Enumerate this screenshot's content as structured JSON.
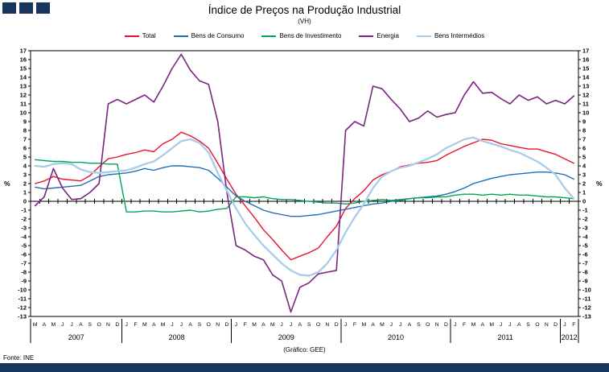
{
  "header": {
    "title": "Índice de Preços na Produção Industrial",
    "subtitle": "(VH)"
  },
  "footer": {
    "source": "Fonte: INE",
    "credit": "(Gráfico: GEE)"
  },
  "colors": {
    "brand_navy": "#17365D",
    "axis": "#000000"
  },
  "chart_data": {
    "type": "line",
    "title": "Índice de Preços na Produção Industrial",
    "subtitle": "(VH)",
    "ylabel": "%",
    "ylim": [
      -13,
      17
    ],
    "ytick_step": 1,
    "grid": false,
    "legend_position": "top",
    "x_months": [
      "M",
      "A",
      "M",
      "J",
      "J",
      "A",
      "S",
      "O",
      "N",
      "D",
      "J",
      "F",
      "M",
      "A",
      "M",
      "J",
      "J",
      "A",
      "S",
      "O",
      "N",
      "D",
      "J",
      "F",
      "M",
      "A",
      "M",
      "J",
      "J",
      "A",
      "S",
      "O",
      "N",
      "D",
      "J",
      "F",
      "M",
      "A",
      "M",
      "J",
      "J",
      "A",
      "S",
      "O",
      "N",
      "D",
      "J",
      "F",
      "M",
      "A",
      "M",
      "J",
      "J",
      "A",
      "S",
      "O",
      "N",
      "D",
      "J",
      "F"
    ],
    "x_years": [
      {
        "label": "2007",
        "count": 10
      },
      {
        "label": "2008",
        "count": 12
      },
      {
        "label": "2009",
        "count": 12
      },
      {
        "label": "2010",
        "count": 12
      },
      {
        "label": "2011",
        "count": 12
      },
      {
        "label": "2012",
        "count": 2
      }
    ],
    "series": [
      {
        "name": "Total",
        "color": "#E8112D",
        "values": [
          2.0,
          2.3,
          2.8,
          2.5,
          2.4,
          2.3,
          2.9,
          3.9,
          4.8,
          5.0,
          5.3,
          5.5,
          5.8,
          5.6,
          6.5,
          7.0,
          7.8,
          7.4,
          6.8,
          6.0,
          4.3,
          2.5,
          0.8,
          -0.5,
          -1.8,
          -3.2,
          -4.3,
          -5.5,
          -6.6,
          -6.2,
          -5.8,
          -5.3,
          -4.0,
          -2.8,
          -0.8,
          0.3,
          1.2,
          2.4,
          3.0,
          3.4,
          3.9,
          4.1,
          4.3,
          4.4,
          4.6,
          5.2,
          5.7,
          6.2,
          6.6,
          7.0,
          6.9,
          6.5,
          6.3,
          6.1,
          5.9,
          5.9,
          5.6,
          5.3,
          4.8,
          4.3
        ]
      },
      {
        "name": "Bens de Consumo",
        "color": "#1F6EB5",
        "values": [
          1.6,
          1.4,
          1.5,
          1.6,
          1.7,
          1.8,
          2.3,
          2.8,
          3.0,
          3.1,
          3.2,
          3.4,
          3.7,
          3.5,
          3.8,
          4.0,
          4.0,
          3.9,
          3.8,
          3.5,
          2.6,
          1.6,
          0.6,
          0.0,
          -0.5,
          -1.0,
          -1.3,
          -1.5,
          -1.7,
          -1.7,
          -1.6,
          -1.5,
          -1.3,
          -1.1,
          -0.9,
          -0.7,
          -0.5,
          -0.3,
          -0.2,
          0.0,
          0.1,
          0.3,
          0.4,
          0.5,
          0.6,
          0.8,
          1.1,
          1.5,
          2.0,
          2.3,
          2.6,
          2.8,
          3.0,
          3.1,
          3.2,
          3.3,
          3.3,
          3.2,
          3.0,
          2.5
        ]
      },
      {
        "name": "Bens de Investimento",
        "color": "#00A550",
        "values": [
          4.7,
          4.6,
          4.5,
          4.5,
          4.4,
          4.4,
          4.3,
          4.3,
          4.2,
          4.2,
          -1.2,
          -1.2,
          -1.1,
          -1.1,
          -1.2,
          -1.2,
          -1.1,
          -1.0,
          -1.2,
          -1.1,
          -0.9,
          -0.8,
          0.5,
          0.5,
          0.4,
          0.5,
          0.3,
          0.2,
          0.2,
          0.1,
          0.0,
          -0.1,
          -0.2,
          -0.2,
          -0.3,
          -0.2,
          0.0,
          0.1,
          0.2,
          0.1,
          0.2,
          0.3,
          0.4,
          0.4,
          0.5,
          0.5,
          0.7,
          0.8,
          0.8,
          0.7,
          0.8,
          0.7,
          0.8,
          0.7,
          0.7,
          0.6,
          0.5,
          0.5,
          0.4,
          0.3
        ]
      },
      {
        "name": "Energia",
        "color": "#7B2481",
        "values": [
          -0.5,
          0.5,
          3.7,
          1.5,
          0.2,
          0.3,
          1.0,
          2.0,
          11.0,
          11.5,
          11.0,
          11.5,
          12.0,
          11.2,
          13.0,
          15.0,
          16.6,
          14.8,
          13.6,
          13.2,
          9.0,
          1.0,
          -5.0,
          -5.5,
          -6.2,
          -6.6,
          -8.3,
          -9.0,
          -12.5,
          -9.7,
          -9.2,
          -8.2,
          -8.0,
          -7.8,
          8.0,
          9.0,
          8.5,
          13.0,
          12.7,
          11.5,
          10.4,
          9.0,
          9.4,
          10.2,
          9.5,
          9.8,
          10.0,
          12.0,
          13.5,
          12.2,
          12.3,
          11.6,
          11.0,
          12.0,
          11.4,
          11.8,
          11.0,
          11.4,
          11.0,
          11.9
        ]
      },
      {
        "name": "Bens Intermédios",
        "color": "#A9CCE9",
        "values": [
          4.0,
          3.9,
          4.2,
          4.3,
          4.2,
          3.6,
          3.3,
          3.2,
          3.3,
          3.4,
          3.5,
          3.8,
          4.2,
          4.5,
          5.2,
          6.0,
          6.8,
          7.0,
          6.6,
          5.5,
          3.2,
          1.2,
          -0.8,
          -2.5,
          -3.8,
          -5.0,
          -6.0,
          -7.0,
          -7.8,
          -8.3,
          -8.4,
          -8.0,
          -7.0,
          -5.5,
          -3.5,
          -1.8,
          -0.3,
          1.5,
          2.8,
          3.4,
          3.8,
          4.0,
          4.4,
          4.8,
          5.3,
          6.0,
          6.5,
          7.0,
          7.2,
          6.8,
          6.5,
          6.2,
          5.8,
          5.5,
          5.0,
          4.5,
          3.8,
          3.0,
          1.5,
          0.3
        ]
      }
    ]
  }
}
